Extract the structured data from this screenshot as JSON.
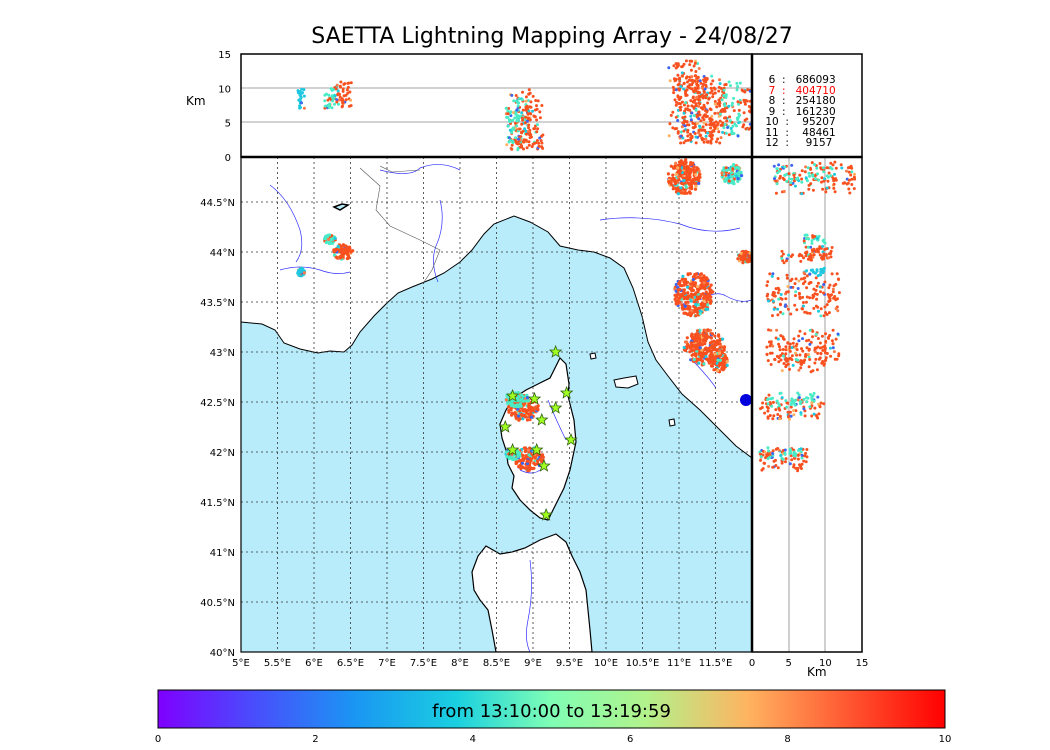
{
  "title": "SAETTA Lightning Mapping Array - 24/08/27",
  "km_label": "Km",
  "time_range": "from 13:10:00 to 13:19:59",
  "colorbar": {
    "ticks": [
      "0",
      "2",
      "4",
      "6",
      "8",
      "10"
    ],
    "range": [
      0,
      10
    ]
  },
  "stats": [
    {
      "label": "6",
      "count": "686093",
      "color": "#000000"
    },
    {
      "label": "7",
      "count": "404710",
      "color": "#ff0000"
    },
    {
      "label": "8",
      "count": "254180",
      "color": "#000000"
    },
    {
      "label": "9",
      "count": "161230",
      "color": "#000000"
    },
    {
      "label": "10",
      "count": "95207",
      "color": "#000000"
    },
    {
      "label": "11",
      "count": "48461",
      "color": "#000000"
    },
    {
      "label": "12",
      "count": "9157",
      "color": "#000000"
    }
  ],
  "map": {
    "lon_ticks": [
      "5°E",
      "5.5°E",
      "6°E",
      "6.5°E",
      "7°E",
      "7.5°E",
      "8°E",
      "8.5°E",
      "9°E",
      "9.5°E",
      "10°E",
      "10.5°E",
      "11°E",
      "11.5°E"
    ],
    "lat_ticks": [
      "40°N",
      "40.5°N",
      "41°N",
      "41.5°N",
      "42°N",
      "42.5°N",
      "43°N",
      "43.5°N",
      "44°N",
      "44.5°N"
    ],
    "lon_range": [
      5,
      12
    ],
    "lat_range": [
      40,
      44.95
    ],
    "sea_color": "#b8ecfb",
    "land_color": "#ffffff"
  },
  "altitude_axis": {
    "ticks": [
      "0",
      "5",
      "10",
      "15"
    ],
    "range": [
      0,
      15
    ]
  },
  "stations": [
    [
      8.72,
      42.56
    ],
    [
      9.02,
      42.53
    ],
    [
      9.46,
      42.59
    ],
    [
      9.31,
      43.0
    ],
    [
      9.31,
      42.44
    ],
    [
      9.12,
      42.32
    ],
    [
      8.62,
      42.25
    ],
    [
      8.72,
      42.02
    ],
    [
      9.05,
      42.02
    ],
    [
      9.15,
      41.86
    ],
    [
      9.52,
      42.12
    ],
    [
      9.18,
      41.37
    ]
  ],
  "lightning_clusters": [
    {
      "lon": 8.87,
      "lat": 42.43,
      "rl": 0.21,
      "rt": 0.12,
      "alt": [
        1,
        10
      ],
      "color": "#f8501e"
    },
    {
      "lon": 8.78,
      "lat": 42.53,
      "rl": 0.16,
      "rt": 0.08,
      "alt": [
        2,
        9
      ],
      "color": "#48ebc6"
    },
    {
      "lon": 8.95,
      "lat": 41.93,
      "rl": 0.2,
      "rt": 0.12,
      "alt": [
        1,
        8
      ],
      "color": "#f8501e"
    },
    {
      "lon": 8.73,
      "lat": 41.98,
      "rl": 0.1,
      "rt": 0.06,
      "alt": [
        1,
        7
      ],
      "color": "#48ebc6"
    },
    {
      "lon": 11.2,
      "lat": 43.58,
      "rl": 0.27,
      "rt": 0.22,
      "alt": [
        2,
        12
      ],
      "color": "#f8501e"
    },
    {
      "lon": 11.35,
      "lat": 43.05,
      "rl": 0.28,
      "rt": 0.18,
      "alt": [
        2,
        12
      ],
      "color": "#f8501e"
    },
    {
      "lon": 11.55,
      "lat": 42.9,
      "rl": 0.12,
      "rt": 0.1,
      "alt": [
        3,
        10
      ],
      "color": "#f8501e"
    },
    {
      "lon": 11.07,
      "lat": 44.75,
      "rl": 0.22,
      "rt": 0.18,
      "alt": [
        3,
        14
      ],
      "color": "#f8501e"
    },
    {
      "lon": 11.72,
      "lat": 44.78,
      "rl": 0.14,
      "rt": 0.1,
      "alt": [
        3,
        11
      ],
      "color": "#48ebc6"
    },
    {
      "lon": 11.9,
      "lat": 43.95,
      "rl": 0.1,
      "rt": 0.06,
      "alt": [
        4,
        10
      ],
      "color": "#f8501e"
    },
    {
      "lon": 6.4,
      "lat": 44.0,
      "rl": 0.14,
      "rt": 0.08,
      "alt": [
        7,
        11
      ],
      "color": "#f8501e"
    },
    {
      "lon": 6.22,
      "lat": 44.13,
      "rl": 0.08,
      "rt": 0.05,
      "alt": [
        7,
        10
      ],
      "color": "#48ebc6"
    },
    {
      "lon": 5.82,
      "lat": 43.8,
      "rl": 0.05,
      "rt": 0.04,
      "alt": [
        7,
        10
      ],
      "color": "#1ec8e0"
    }
  ]
}
